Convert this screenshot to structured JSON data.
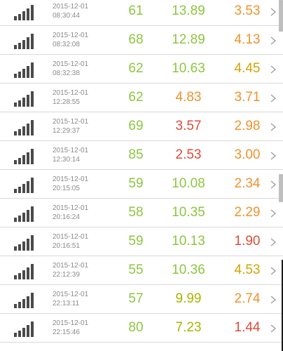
{
  "colors": {
    "good": "#8cc63f",
    "okay": "#a8b400",
    "warn": "#f0922b",
    "bad": "#dd4b39",
    "icon": "#4a4a4a",
    "chevron": "#9a9a9a"
  },
  "icons": {
    "signal": "signal-bars-icon",
    "chevron": "chevron-right-icon"
  },
  "rows": [
    {
      "date": "2015-12-01",
      "time": "08:30:44",
      "v1": "61",
      "v2": "13.89",
      "v3": "3.53",
      "c1": "#8cc63f",
      "c2": "#8cc63f",
      "c3": "#f0922b"
    },
    {
      "date": "2015-12-01",
      "time": "08:32:08",
      "v1": "68",
      "v2": "12.89",
      "v3": "4.13",
      "c1": "#8cc63f",
      "c2": "#8cc63f",
      "c3": "#f0922b"
    },
    {
      "date": "2015-12-01",
      "time": "08:32:38",
      "v1": "62",
      "v2": "10.63",
      "v3": "4.45",
      "c1": "#8cc63f",
      "c2": "#8cc63f",
      "c3": "#d4a300"
    },
    {
      "date": "2015-12-01",
      "time": "12:28:55",
      "v1": "62",
      "v2": "4.83",
      "v3": "3.71",
      "c1": "#8cc63f",
      "c2": "#f0922b",
      "c3": "#f0922b"
    },
    {
      "date": "2015-12-01",
      "time": "12:29:37",
      "v1": "69",
      "v2": "3.57",
      "v3": "2.98",
      "c1": "#8cc63f",
      "c2": "#dd4b39",
      "c3": "#f0922b"
    },
    {
      "date": "2015-12-01",
      "time": "12:30:14",
      "v1": "85",
      "v2": "2.53",
      "v3": "3.00",
      "c1": "#8cc63f",
      "c2": "#dd4b39",
      "c3": "#f0922b"
    },
    {
      "date": "2015-12-01",
      "time": "20:15:05",
      "v1": "59",
      "v2": "10.08",
      "v3": "2.34",
      "c1": "#8cc63f",
      "c2": "#8cc63f",
      "c3": "#f0922b"
    },
    {
      "date": "2015-12-01",
      "time": "20:16:24",
      "v1": "58",
      "v2": "10.35",
      "v3": "2.29",
      "c1": "#8cc63f",
      "c2": "#8cc63f",
      "c3": "#f0922b"
    },
    {
      "date": "2015-12-01",
      "time": "20:16:51",
      "v1": "59",
      "v2": "10.13",
      "v3": "1.90",
      "c1": "#8cc63f",
      "c2": "#8cc63f",
      "c3": "#dd4b39"
    },
    {
      "date": "2015-12-01",
      "time": "22:12:39",
      "v1": "55",
      "v2": "10.36",
      "v3": "4.53",
      "c1": "#8cc63f",
      "c2": "#8cc63f",
      "c3": "#d4a300"
    },
    {
      "date": "2015-12-01",
      "time": "22:13:11",
      "v1": "57",
      "v2": "9.99",
      "v3": "2.74",
      "c1": "#8cc63f",
      "c2": "#a8b400",
      "c3": "#f0922b"
    },
    {
      "date": "2015-12-01",
      "time": "22:15:46",
      "v1": "80",
      "v2": "7.23",
      "v3": "1.44",
      "c1": "#8cc63f",
      "c2": "#a8b400",
      "c3": "#dd4b39"
    }
  ]
}
